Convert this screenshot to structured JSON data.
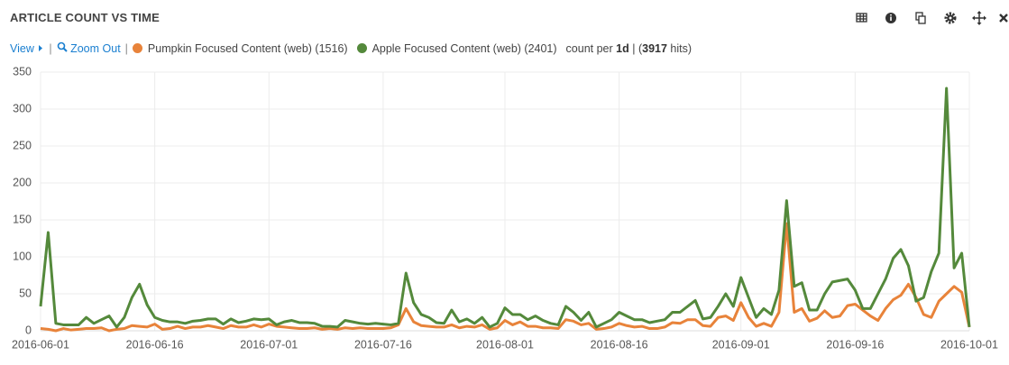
{
  "chart_data": {
    "type": "line",
    "title": "ARTICLE COUNT VS TIME",
    "controls": {
      "view": "View",
      "zoom_out": "Zoom Out"
    },
    "summary": {
      "prefix": "count per",
      "interval": "1d",
      "separator": "| (",
      "hits": "3917",
      "suffix": "hits)"
    },
    "x": [
      "2016-06-01",
      "2016-06-02",
      "2016-06-03",
      "2016-06-04",
      "2016-06-05",
      "2016-06-06",
      "2016-06-07",
      "2016-06-08",
      "2016-06-09",
      "2016-06-10",
      "2016-06-11",
      "2016-06-12",
      "2016-06-13",
      "2016-06-14",
      "2016-06-15",
      "2016-06-16",
      "2016-06-17",
      "2016-06-18",
      "2016-06-19",
      "2016-06-20",
      "2016-06-21",
      "2016-06-22",
      "2016-06-23",
      "2016-06-24",
      "2016-06-25",
      "2016-06-26",
      "2016-06-27",
      "2016-06-28",
      "2016-06-29",
      "2016-06-30",
      "2016-07-01",
      "2016-07-02",
      "2016-07-03",
      "2016-07-04",
      "2016-07-05",
      "2016-07-06",
      "2016-07-07",
      "2016-07-08",
      "2016-07-09",
      "2016-07-10",
      "2016-07-11",
      "2016-07-12",
      "2016-07-13",
      "2016-07-14",
      "2016-07-15",
      "2016-07-16",
      "2016-07-17",
      "2016-07-18",
      "2016-07-19",
      "2016-07-20",
      "2016-07-21",
      "2016-07-22",
      "2016-07-23",
      "2016-07-24",
      "2016-07-25",
      "2016-07-26",
      "2016-07-27",
      "2016-07-28",
      "2016-07-29",
      "2016-07-30",
      "2016-07-31",
      "2016-08-01",
      "2016-08-02",
      "2016-08-03",
      "2016-08-04",
      "2016-08-05",
      "2016-08-06",
      "2016-08-07",
      "2016-08-08",
      "2016-08-09",
      "2016-08-10",
      "2016-08-11",
      "2016-08-12",
      "2016-08-13",
      "2016-08-14",
      "2016-08-15",
      "2016-08-16",
      "2016-08-17",
      "2016-08-18",
      "2016-08-19",
      "2016-08-20",
      "2016-08-21",
      "2016-08-22",
      "2016-08-23",
      "2016-08-24",
      "2016-08-25",
      "2016-08-26",
      "2016-08-27",
      "2016-08-28",
      "2016-08-29",
      "2016-08-30",
      "2016-08-31",
      "2016-09-01",
      "2016-09-02",
      "2016-09-03",
      "2016-09-04",
      "2016-09-05",
      "2016-09-06",
      "2016-09-07",
      "2016-09-08",
      "2016-09-09",
      "2016-09-10",
      "2016-09-11",
      "2016-09-12",
      "2016-09-13",
      "2016-09-14",
      "2016-09-15",
      "2016-09-16",
      "2016-09-17",
      "2016-09-18",
      "2016-09-19",
      "2016-09-20",
      "2016-09-21",
      "2016-09-22",
      "2016-09-23",
      "2016-09-24",
      "2016-09-25",
      "2016-09-26",
      "2016-09-27",
      "2016-09-28",
      "2016-09-29",
      "2016-09-30",
      "2016-10-01"
    ],
    "series": [
      {
        "name": "Pumpkin Focused Content (web) (1516)",
        "color": "#e8833a",
        "values": [
          3,
          2,
          0,
          3,
          1,
          2,
          3,
          3,
          4,
          0,
          2,
          3,
          7,
          6,
          5,
          9,
          2,
          3,
          6,
          3,
          5,
          5,
          7,
          5,
          3,
          7,
          5,
          5,
          8,
          5,
          9,
          6,
          5,
          4,
          3,
          3,
          4,
          2,
          3,
          2,
          4,
          3,
          4,
          3,
          3,
          3,
          4,
          8,
          30,
          12,
          7,
          6,
          5,
          5,
          8,
          4,
          6,
          5,
          8,
          2,
          4,
          14,
          8,
          12,
          6,
          6,
          4,
          4,
          3,
          15,
          13,
          8,
          10,
          2,
          3,
          5,
          10,
          7,
          5,
          6,
          3,
          3,
          5,
          11,
          10,
          15,
          15,
          7,
          6,
          18,
          20,
          14,
          38,
          18,
          6,
          10,
          6,
          25,
          145,
          25,
          30,
          13,
          17,
          27,
          18,
          20,
          34,
          36,
          28,
          20,
          14,
          30,
          42,
          48,
          63,
          45,
          22,
          18,
          40,
          50,
          60,
          52,
          5
        ]
      },
      {
        "name": "Apple Focused Content (web) (2401)",
        "color": "#54893b",
        "values": [
          33,
          133,
          10,
          8,
          8,
          8,
          18,
          10,
          15,
          20,
          5,
          18,
          45,
          63,
          35,
          18,
          14,
          12,
          12,
          10,
          13,
          14,
          16,
          16,
          9,
          16,
          11,
          13,
          16,
          15,
          16,
          8,
          12,
          14,
          11,
          11,
          10,
          6,
          6,
          5,
          14,
          12,
          10,
          9,
          10,
          9,
          8,
          10,
          78,
          38,
          22,
          18,
          11,
          10,
          28,
          12,
          16,
          10,
          18,
          5,
          10,
          31,
          22,
          22,
          15,
          20,
          14,
          10,
          8,
          33,
          25,
          14,
          25,
          5,
          10,
          15,
          25,
          20,
          15,
          15,
          11,
          13,
          15,
          25,
          25,
          33,
          41,
          16,
          18,
          33,
          50,
          33,
          72,
          45,
          18,
          30,
          22,
          55,
          176,
          60,
          65,
          28,
          28,
          50,
          66,
          68,
          70,
          55,
          30,
          30,
          50,
          70,
          98,
          110,
          88,
          40,
          45,
          80,
          105,
          328,
          85,
          105,
          5
        ]
      }
    ],
    "xlim": [
      "2016-06-01",
      "2016-10-01"
    ],
    "xticks": [
      "2016-06-01",
      "2016-06-16",
      "2016-07-01",
      "2016-07-16",
      "2016-08-01",
      "2016-08-16",
      "2016-09-01",
      "2016-09-16",
      "2016-10-01"
    ],
    "ylim": [
      0,
      350
    ],
    "yticks": [
      0,
      50,
      100,
      150,
      200,
      250,
      300,
      350
    ],
    "grid": true
  }
}
